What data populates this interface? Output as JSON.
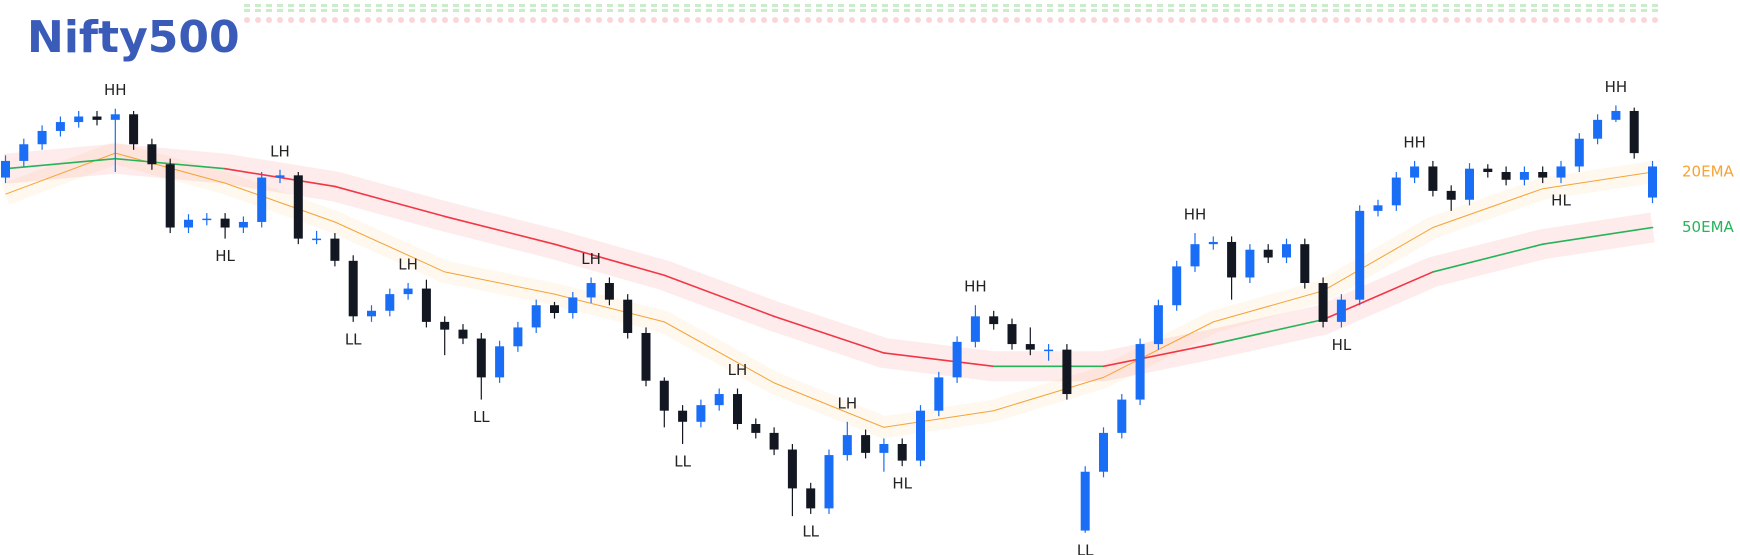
{
  "chart_data": {
    "type": "candlestick",
    "title": "Nifty500",
    "ylim": [
      0,
      445
    ],
    "up_color": "#1a6ef5",
    "down_color": "#131722",
    "ohlc": [
      [
        340,
        360,
        335,
        355
      ],
      [
        355,
        375,
        350,
        370
      ],
      [
        370,
        387,
        365,
        382
      ],
      [
        382,
        395,
        377,
        390
      ],
      [
        390,
        400,
        385,
        395
      ],
      [
        395,
        400,
        387,
        392
      ],
      [
        392,
        402,
        345,
        397
      ],
      [
        397,
        400,
        365,
        370
      ],
      [
        370,
        375,
        347,
        352
      ],
      [
        352,
        357,
        290,
        295
      ],
      [
        295,
        307,
        290,
        302
      ],
      [
        302,
        308,
        297,
        303
      ],
      [
        303,
        308,
        285,
        295
      ],
      [
        295,
        305,
        290,
        300
      ],
      [
        300,
        345,
        295,
        340
      ],
      [
        340,
        347,
        335,
        342
      ],
      [
        342,
        345,
        280,
        285
      ],
      [
        285,
        292,
        280,
        285
      ],
      [
        285,
        290,
        260,
        265
      ],
      [
        265,
        270,
        210,
        215
      ],
      [
        215,
        225,
        210,
        220
      ],
      [
        220,
        240,
        215,
        235
      ],
      [
        235,
        245,
        230,
        240
      ],
      [
        240,
        248,
        205,
        210
      ],
      [
        210,
        215,
        180,
        203
      ],
      [
        203,
        208,
        190,
        195
      ],
      [
        195,
        200,
        140,
        160
      ],
      [
        160,
        193,
        155,
        188
      ],
      [
        188,
        210,
        183,
        205
      ],
      [
        205,
        230,
        200,
        225
      ],
      [
        225,
        228,
        213,
        218
      ],
      [
        218,
        237,
        213,
        232
      ],
      [
        232,
        250,
        227,
        245
      ],
      [
        245,
        250,
        225,
        230
      ],
      [
        230,
        235,
        195,
        200
      ],
      [
        200,
        205,
        152,
        157
      ],
      [
        157,
        160,
        115,
        130
      ],
      [
        130,
        135,
        100,
        120
      ],
      [
        120,
        140,
        115,
        135
      ],
      [
        135,
        150,
        130,
        145
      ],
      [
        145,
        150,
        113,
        118
      ],
      [
        118,
        123,
        105,
        110
      ],
      [
        110,
        115,
        90,
        95
      ],
      [
        95,
        100,
        35,
        60
      ],
      [
        60,
        65,
        37,
        42
      ],
      [
        42,
        95,
        37,
        90
      ],
      [
        90,
        120,
        85,
        108
      ],
      [
        108,
        113,
        87,
        92
      ],
      [
        92,
        105,
        75,
        100
      ],
      [
        100,
        105,
        80,
        85
      ],
      [
        85,
        135,
        80,
        130
      ],
      [
        130,
        165,
        125,
        160
      ],
      [
        160,
        197,
        155,
        192
      ],
      [
        192,
        225,
        187,
        215
      ],
      [
        215,
        220,
        203,
        208
      ],
      [
        208,
        213,
        185,
        190
      ],
      [
        190,
        205,
        180,
        185
      ],
      [
        185,
        190,
        175,
        185
      ],
      [
        185,
        190,
        140,
        145
      ],
      [
        22,
        80,
        20,
        75
      ],
      [
        75,
        115,
        70,
        110
      ],
      [
        110,
        145,
        105,
        140
      ],
      [
        140,
        195,
        135,
        190
      ],
      [
        190,
        230,
        185,
        225
      ],
      [
        225,
        265,
        220,
        260
      ],
      [
        260,
        290,
        255,
        280
      ],
      [
        280,
        287,
        275,
        282
      ],
      [
        282,
        287,
        230,
        250
      ],
      [
        250,
        280,
        245,
        275
      ],
      [
        275,
        280,
        263,
        268
      ],
      [
        268,
        285,
        263,
        280
      ],
      [
        280,
        285,
        240,
        245
      ],
      [
        245,
        250,
        205,
        210
      ],
      [
        210,
        235,
        205,
        230
      ],
      [
        230,
        315,
        225,
        310
      ],
      [
        310,
        320,
        305,
        315
      ],
      [
        315,
        345,
        310,
        340
      ],
      [
        340,
        355,
        335,
        350
      ],
      [
        350,
        355,
        323,
        328
      ],
      [
        328,
        333,
        310,
        320
      ],
      [
        320,
        353,
        315,
        348
      ],
      [
        348,
        352,
        340,
        345
      ],
      [
        345,
        350,
        333,
        338
      ],
      [
        338,
        350,
        333,
        345
      ],
      [
        345,
        350,
        335,
        340
      ],
      [
        340,
        355,
        335,
        350
      ],
      [
        350,
        380,
        345,
        375
      ],
      [
        375,
        397,
        370,
        392
      ],
      [
        392,
        405,
        390,
        400
      ],
      [
        400,
        403,
        357,
        362
      ],
      [
        322,
        355,
        317,
        350
      ]
    ],
    "x": [
      0,
      6,
      12,
      18,
      24,
      30,
      36,
      42,
      48,
      54,
      60,
      66,
      72,
      78,
      84,
      90
    ],
    "series": [
      {
        "name": "20EMA",
        "color": "#f7a234",
        "values": [
          325,
          362,
          335,
          300,
          255,
          235,
          210,
          155,
          115,
          130,
          160,
          210,
          238,
          295,
          330,
          345
        ]
      },
      {
        "name": "50EMA",
        "color": "#26b45a",
        "color_below": "#f23645",
        "values": [
          348,
          357,
          348,
          332,
          305,
          280,
          252,
          215,
          182,
          170,
          170,
          190,
          212,
          255,
          280,
          295
        ]
      }
    ],
    "annotations": [
      {
        "text": "HH",
        "index": 6,
        "at": "high"
      },
      {
        "text": "HL",
        "index": 12,
        "at": "low"
      },
      {
        "text": "LH",
        "index": 15,
        "at": "high"
      },
      {
        "text": "LL",
        "index": 19,
        "at": "low"
      },
      {
        "text": "LH",
        "index": 22,
        "at": "high"
      },
      {
        "text": "LL",
        "index": 26,
        "at": "low"
      },
      {
        "text": "LH",
        "index": 32,
        "at": "high"
      },
      {
        "text": "LL",
        "index": 37,
        "at": "low"
      },
      {
        "text": "LH",
        "index": 40,
        "at": "high"
      },
      {
        "text": "LL",
        "index": 44,
        "at": "low"
      },
      {
        "text": "LH",
        "index": 46,
        "at": "high"
      },
      {
        "text": "HL",
        "index": 49,
        "at": "low"
      },
      {
        "text": "HH",
        "index": 53,
        "at": "high"
      },
      {
        "text": "LL",
        "index": 59,
        "at": "low"
      },
      {
        "text": "HH",
        "index": 65,
        "at": "high"
      },
      {
        "text": "HL",
        "index": 73,
        "at": "low"
      },
      {
        "text": "HH",
        "index": 77,
        "at": "high"
      },
      {
        "text": "HL",
        "index": 85,
        "at": "low"
      },
      {
        "text": "HH",
        "index": 88,
        "at": "high"
      }
    ]
  }
}
